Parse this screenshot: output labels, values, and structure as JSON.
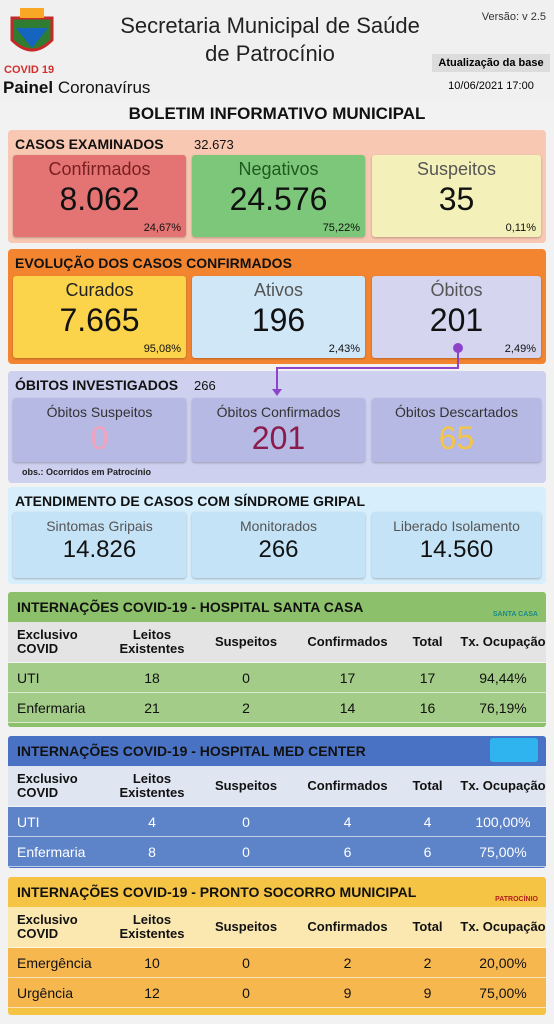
{
  "header": {
    "title_line1": "Secretaria Municipal de Saúde",
    "title_line2": "de Patrocínio",
    "version": "Versão: v 2.5",
    "update_label": "Atualização da base",
    "update_date": "10/06/2021 17:00",
    "logo_caption": "COVID 19",
    "panel": "Painel",
    "panel_sub": "Coronavírus"
  },
  "bulletin_title": "BOLETIM INFORMATIVO MUNICIPAL",
  "sections": [
    {
      "title": "CASOS EXAMINADOS",
      "total": "32.673",
      "cards": [
        {
          "label": "Confirmados",
          "value": "8.062",
          "percent": "24,67%"
        },
        {
          "label": "Negativos",
          "value": "24.576",
          "percent": "75,22%"
        },
        {
          "label": "Suspeitos",
          "value": "35",
          "percent": "0,11%"
        }
      ]
    },
    {
      "title": "EVOLUÇÃO DOS CASOS CONFIRMADOS",
      "cards": [
        {
          "label": "Curados",
          "value": "7.665",
          "percent": "95,08%"
        },
        {
          "label": "Ativos",
          "value": "196",
          "percent": "2,43%"
        },
        {
          "label": "Óbitos",
          "value": "201",
          "percent": "2,49%"
        }
      ]
    },
    {
      "title": "ÓBITOS INVESTIGADOS",
      "total": "266",
      "cards": [
        {
          "label": "Óbitos Suspeitos",
          "value": "0"
        },
        {
          "label": "Óbitos Confirmados",
          "value": "201"
        },
        {
          "label": "Óbitos Descartados",
          "value": "65"
        }
      ],
      "note": "obs.: Ocorridos em Patrocínio"
    },
    {
      "title": "ATENDIMENTO DE CASOS COM SÍNDROME GRIPAL",
      "cards": [
        {
          "label": "Sintomas Gripais",
          "value": "14.826"
        },
        {
          "label": "Monitorados",
          "value": "266"
        },
        {
          "label": "Liberado Isolamento",
          "value": "14.560"
        }
      ]
    }
  ],
  "tables": [
    {
      "title": "INTERNAÇÕES COVID-19 - HOSPITAL SANTA CASA",
      "logo_text": "SANTA CASA",
      "columns": [
        "Exclusivo COVID",
        "Leitos Existentes",
        "Suspeitos",
        "Confirmados",
        "Total",
        "Tx. Ocupação"
      ],
      "rows": [
        [
          "UTI",
          18,
          0,
          17,
          17,
          "94,44%"
        ],
        [
          "Enfermaria",
          21,
          2,
          14,
          16,
          "76,19%"
        ]
      ]
    },
    {
      "title": "INTERNAÇÕES COVID-19 - HOSPITAL MED CENTER",
      "columns": [
        "Exclusivo COVID",
        "Leitos Existentes",
        "Suspeitos",
        "Confirmados",
        "Total",
        "Tx. Ocupação"
      ],
      "rows": [
        [
          "UTI",
          4,
          0,
          4,
          4,
          "100,00%"
        ],
        [
          "Enfermaria",
          8,
          0,
          6,
          6,
          "75,00%"
        ]
      ]
    },
    {
      "title": "INTERNAÇÕES COVID-19 - PRONTO SOCORRO MUNICIPAL",
      "logo_text": "PATROCÍNIO",
      "columns": [
        "Exclusivo COVID",
        "Leitos Existentes",
        "Suspeitos",
        "Confirmados",
        "Total",
        "Tx. Ocupação"
      ],
      "rows": [
        [
          "Emergência",
          10,
          0,
          2,
          2,
          "20,00%"
        ],
        [
          "Urgência",
          12,
          0,
          9,
          9,
          "75,00%"
        ]
      ]
    }
  ]
}
